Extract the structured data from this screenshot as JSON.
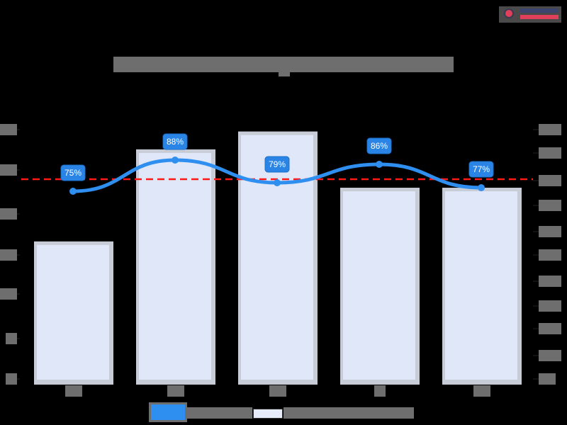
{
  "header": {
    "title": "",
    "logo": {
      "name": "brand-logo",
      "colors": {
        "primary": "#3c4470",
        "accent": "#e0405a"
      }
    }
  },
  "colors": {
    "background": "#000000",
    "bar_fill": "#dfe7f8",
    "bar_border": "#c8ccd6",
    "line": "#2f8ff0",
    "label_bg": "#2a84e6",
    "target_line": "#ff1a1a",
    "redaction": "#6e6e6e"
  },
  "legend": {
    "items": [
      {
        "label": "",
        "type": "line",
        "color": "#2f8ff0"
      },
      {
        "label": "",
        "type": "bar",
        "color": "#e6ecfa"
      }
    ]
  },
  "chart_data": {
    "type": "bar",
    "title": "",
    "categories": [
      "",
      "",
      "",
      "",
      ""
    ],
    "series": [
      {
        "name": "",
        "type": "bar",
        "axis": "right",
        "relative_heights": [
          0.56,
          0.92,
          0.99,
          0.77,
          0.77
        ]
      },
      {
        "name": "",
        "type": "line",
        "axis": "left",
        "values": [
          75,
          88,
          79,
          86,
          77
        ],
        "labels": [
          "75%",
          "88%",
          "79%",
          "86%",
          "77%"
        ]
      }
    ],
    "reference_line": {
      "style": "dashed",
      "color": "#ff1a1a",
      "approx_value_pct": 80
    },
    "left_axis": {
      "tick_count": 7,
      "tick_labels": [
        "",
        "",
        "",
        "",
        "",
        "",
        ""
      ]
    },
    "right_axis": {
      "tick_count": 11,
      "tick_labels": [
        "",
        "",
        "",
        "",
        "",
        "",
        "",
        "",
        "",
        "",
        ""
      ]
    },
    "grid": false,
    "legend_position": "bottom"
  }
}
